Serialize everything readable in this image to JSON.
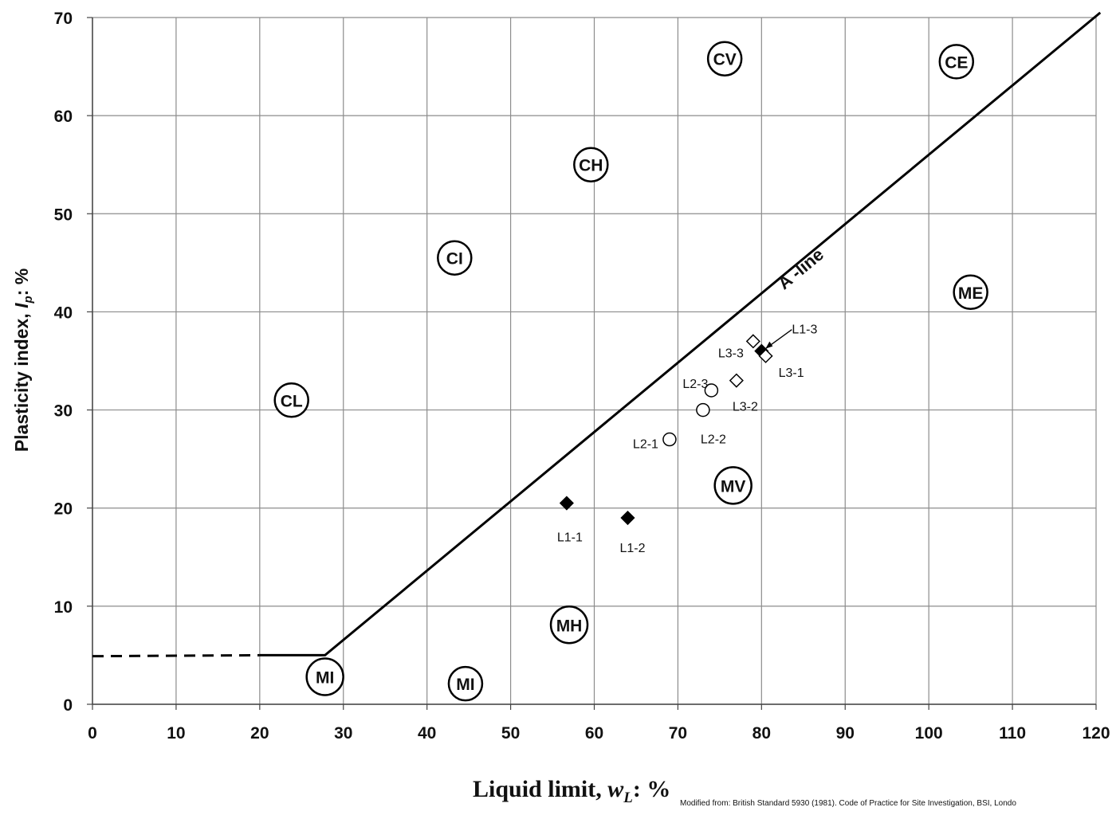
{
  "chart_data": {
    "type": "scatter",
    "title": "",
    "xlabel": {
      "main": "Liquid limit, ",
      "var": "w",
      "sub": "L",
      "tail": ": %"
    },
    "ylabel": {
      "main": "Plasticity index, ",
      "var": "I",
      "sub": "p",
      "tail": ": %"
    },
    "xlim": [
      0,
      120
    ],
    "ylim": [
      0,
      70
    ],
    "x_ticks": [
      0,
      10,
      20,
      30,
      40,
      50,
      60,
      70,
      80,
      90,
      100,
      110,
      120
    ],
    "y_ticks": [
      0,
      10,
      20,
      30,
      40,
      50,
      60,
      70
    ],
    "grid": true,
    "a_line": {
      "label": "A -line",
      "solid": [
        [
          20,
          5
        ],
        [
          27.8,
          5
        ],
        [
          120.5,
          70.5
        ]
      ],
      "dashed": [
        [
          0,
          4.9
        ],
        [
          20,
          5
        ]
      ]
    },
    "zones": [
      {
        "label": "CL",
        "x": 23.8,
        "y": 31.0
      },
      {
        "label": "CI",
        "x": 43.3,
        "y": 45.5
      },
      {
        "label": "CH",
        "x": 59.6,
        "y": 55.0
      },
      {
        "label": "CV",
        "x": 75.6,
        "y": 65.8
      },
      {
        "label": "CE",
        "x": 103.3,
        "y": 65.5
      },
      {
        "label": "ME",
        "x": 105.0,
        "y": 42.0
      },
      {
        "label": "MV",
        "x": 76.6,
        "y": 22.3
      },
      {
        "label": "MH",
        "x": 57.0,
        "y": 8.1
      },
      {
        "label": "MI",
        "x": 44.6,
        "y": 2.1
      },
      {
        "label": "MI",
        "x": 27.8,
        "y": 2.8
      }
    ],
    "series": [
      {
        "marker": "filled-diamond",
        "points": [
          {
            "label": "L1-1",
            "x": 56.7,
            "y": 20.5
          },
          {
            "label": "L1-2",
            "x": 64.0,
            "y": 19.0
          },
          {
            "label": "L1-3",
            "x": 80.0,
            "y": 36.0
          }
        ]
      },
      {
        "marker": "open-circle",
        "points": [
          {
            "label": "L2-1",
            "x": 69.0,
            "y": 27.0
          },
          {
            "label": "L2-2",
            "x": 73.0,
            "y": 30.0
          },
          {
            "label": "L2-3",
            "x": 74.0,
            "y": 32.0
          }
        ]
      },
      {
        "marker": "open-diamond",
        "points": [
          {
            "label": "L3-1",
            "x": 80.5,
            "y": 35.5
          },
          {
            "label": "L3-2",
            "x": 77.0,
            "y": 33.0
          },
          {
            "label": "L3-3",
            "x": 79.0,
            "y": 37.0
          }
        ]
      }
    ],
    "note": "Modified from: British Standard  5930 (1981). Code of Practice for Site Investigation, BSI, Londo"
  }
}
